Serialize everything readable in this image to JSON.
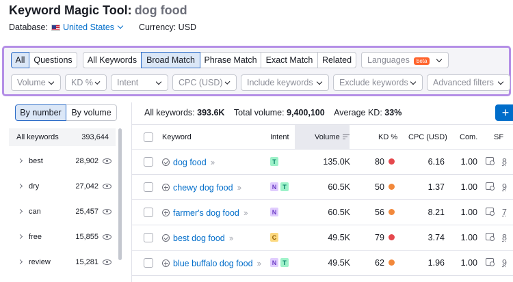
{
  "header": {
    "tool_name": "Keyword Magic Tool:",
    "keyword": "dog food"
  },
  "database": {
    "label": "Database:",
    "value": "United States",
    "currency_label": "Currency: USD"
  },
  "match_tabs": [
    "All",
    "Questions"
  ],
  "match_types": [
    "All Keywords",
    "Broad Match",
    "Phrase Match",
    "Exact Match",
    "Related"
  ],
  "languages": {
    "label": "Languages",
    "badge": "beta"
  },
  "filters": [
    "Volume",
    "KD %",
    "Intent",
    "CPC (USD)",
    "Include keywords",
    "Exclude keywords",
    "Advanced filters"
  ],
  "group_toggle": [
    "By number",
    "By volume"
  ],
  "groups_header": {
    "label": "All keywords",
    "count": "393,644"
  },
  "groups": [
    {
      "word": "best",
      "count": "28,902"
    },
    {
      "word": "dry",
      "count": "27,042"
    },
    {
      "word": "can",
      "count": "25,457"
    },
    {
      "word": "free",
      "count": "15,855"
    },
    {
      "word": "review",
      "count": "15,281"
    }
  ],
  "summary": {
    "all_label": "All keywords:",
    "all_value": "393.6K",
    "vol_label": "Total volume:",
    "vol_value": "9,400,100",
    "kd_label": "Average KD:",
    "kd_value": "33%"
  },
  "add_button": "+",
  "columns": [
    "Keyword",
    "Intent",
    "Volume",
    "KD %",
    "CPC (USD)",
    "Com.",
    "SF"
  ],
  "rows": [
    {
      "keyword": "dog food",
      "icon": "check-icon",
      "intent": [
        "T"
      ],
      "volume": "135.0K",
      "kd": "80",
      "kd_color": "#e5484d",
      "cpc": "6.16",
      "com": "1.00",
      "sf": "8"
    },
    {
      "keyword": "chewy dog food",
      "icon": "plus-icon",
      "intent": [
        "N",
        "T"
      ],
      "volume": "60.5K",
      "kd": "50",
      "kd_color": "#f2883b",
      "cpc": "1.37",
      "com": "1.00",
      "sf": "9"
    },
    {
      "keyword": "farmer's dog food",
      "icon": "plus-icon",
      "intent": [
        "N"
      ],
      "volume": "60.5K",
      "kd": "56",
      "kd_color": "#f2883b",
      "cpc": "8.21",
      "com": "1.00",
      "sf": "7"
    },
    {
      "keyword": "best dog food",
      "icon": "check-icon",
      "intent": [
        "C"
      ],
      "volume": "49.5K",
      "kd": "79",
      "kd_color": "#e5484d",
      "cpc": "3.74",
      "com": "1.00",
      "sf": "8"
    },
    {
      "keyword": "blue buffalo dog food",
      "icon": "plus-icon",
      "intent": [
        "N",
        "T"
      ],
      "volume": "49.5K",
      "kd": "62",
      "kd_color": "#f2883b",
      "cpc": "1.96",
      "com": "1.00",
      "sf": "9"
    }
  ]
}
